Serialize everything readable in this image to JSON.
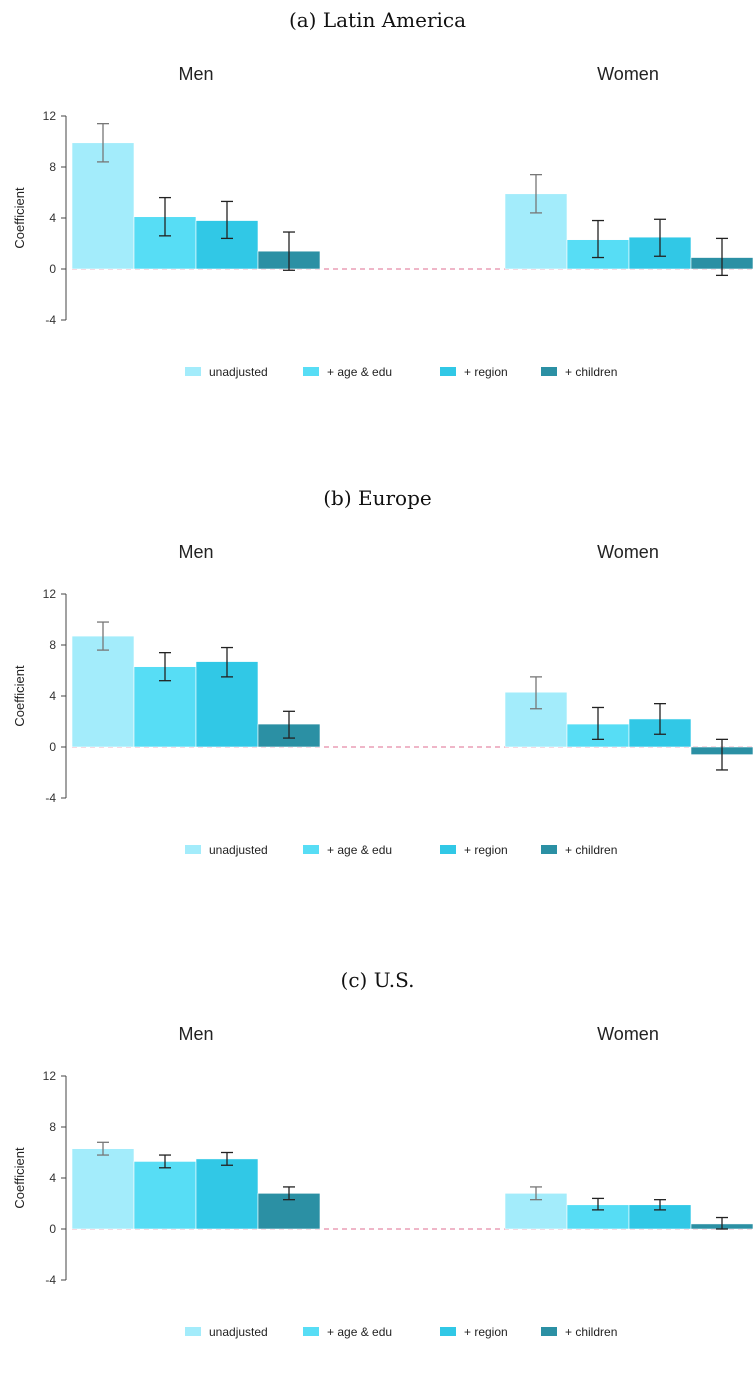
{
  "colors": {
    "unadjusted": "#a3ecfb",
    "age_edu": "#57ddf5",
    "region": "#31c8e6",
    "children": "#2b90a4",
    "zero_line": "#e58aa6",
    "axis": "#444444"
  },
  "legend": [
    "unadjusted",
    "+ age & edu",
    "+ region",
    "+ children"
  ],
  "chart_data": [
    {
      "type": "bar",
      "title": "(a) Latin America",
      "ylabel": "Coefficient",
      "ylim": [
        -4,
        12
      ],
      "yticks": [
        "12",
        "8",
        "4",
        "0",
        "-4"
      ],
      "groups": [
        "Men",
        "Women"
      ],
      "series": [
        {
          "name": "unadjusted",
          "values": [
            9.9,
            5.9
          ],
          "ci_low": [
            8.4,
            4.4
          ],
          "ci_high": [
            11.4,
            7.4
          ]
        },
        {
          "name": "+ age & edu",
          "values": [
            4.1,
            2.3
          ],
          "ci_low": [
            2.6,
            0.9
          ],
          "ci_high": [
            5.6,
            3.8
          ]
        },
        {
          "name": "+ region",
          "values": [
            3.8,
            2.5
          ],
          "ci_low": [
            2.4,
            1.0
          ],
          "ci_high": [
            5.3,
            3.9
          ]
        },
        {
          "name": "+ children",
          "values": [
            1.4,
            0.9
          ],
          "ci_low": [
            -0.1,
            -0.5
          ],
          "ci_high": [
            2.9,
            2.4
          ]
        }
      ]
    },
    {
      "type": "bar",
      "title": "(b) Europe",
      "ylabel": "Coefficient",
      "ylim": [
        -4,
        12
      ],
      "yticks": [
        "12",
        "8",
        "4",
        "0",
        "-4"
      ],
      "groups": [
        "Men",
        "Women"
      ],
      "series": [
        {
          "name": "unadjusted",
          "values": [
            8.7,
            4.3
          ],
          "ci_low": [
            7.6,
            3.0
          ],
          "ci_high": [
            9.8,
            5.5
          ]
        },
        {
          "name": "+ age & edu",
          "values": [
            6.3,
            1.8
          ],
          "ci_low": [
            5.2,
            0.6
          ],
          "ci_high": [
            7.4,
            3.1
          ]
        },
        {
          "name": "+ region",
          "values": [
            6.7,
            2.2
          ],
          "ci_low": [
            5.5,
            1.0
          ],
          "ci_high": [
            7.8,
            3.4
          ]
        },
        {
          "name": "+ children",
          "values": [
            1.8,
            -0.6
          ],
          "ci_low": [
            0.7,
            -1.8
          ],
          "ci_high": [
            2.8,
            0.6
          ]
        }
      ]
    },
    {
      "type": "bar",
      "title": "(c) U.S.",
      "ylabel": "Coefficient",
      "ylim": [
        -4,
        12
      ],
      "yticks": [
        "12",
        "8",
        "4",
        "0",
        "-4"
      ],
      "groups": [
        "Men",
        "Women"
      ],
      "series": [
        {
          "name": "unadjusted",
          "values": [
            6.3,
            2.8
          ],
          "ci_low": [
            5.8,
            2.3
          ],
          "ci_high": [
            6.8,
            3.3
          ]
        },
        {
          "name": "+ age & edu",
          "values": [
            5.3,
            1.9
          ],
          "ci_low": [
            4.8,
            1.5
          ],
          "ci_high": [
            5.8,
            2.4
          ]
        },
        {
          "name": "+ region",
          "values": [
            5.5,
            1.9
          ],
          "ci_low": [
            5.0,
            1.5
          ],
          "ci_high": [
            6.0,
            2.3
          ]
        },
        {
          "name": "+ children",
          "values": [
            2.8,
            0.4
          ],
          "ci_low": [
            2.3,
            0.0
          ],
          "ci_high": [
            3.3,
            0.9
          ]
        }
      ]
    }
  ]
}
